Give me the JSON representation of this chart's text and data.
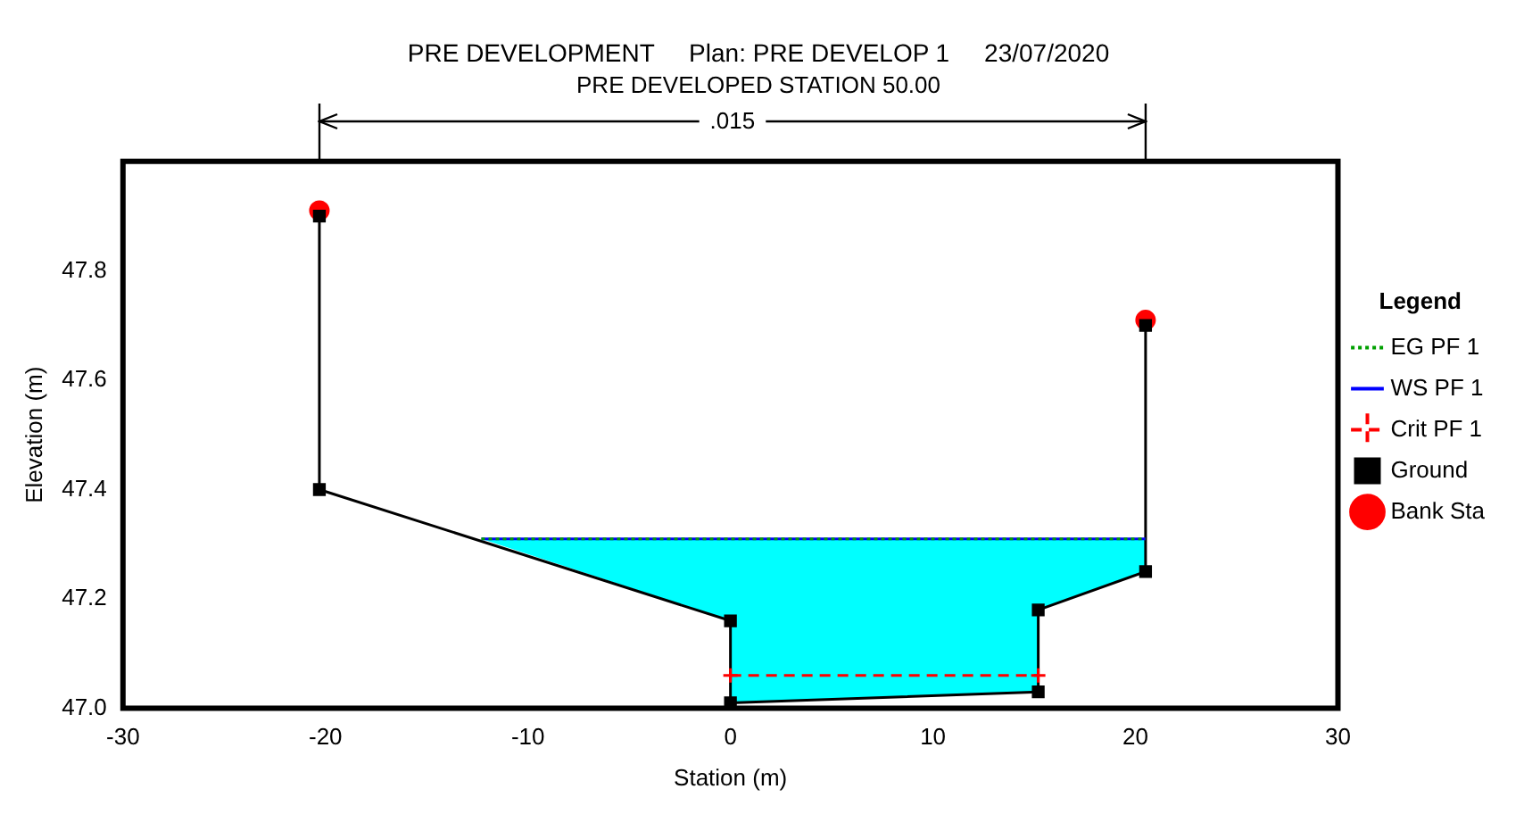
{
  "chart_data": {
    "type": "line",
    "title": "PRE DEVELOPMENT     Plan: PRE DEVELOP 1     23/07/2020",
    "subtitle": "PRE DEVELOPED STATION 50.00",
    "xlabel": "Station (m)",
    "ylabel": "Elevation (m)",
    "legend_title": "Legend",
    "legend": "right",
    "grid": false,
    "xlim": [
      -30,
      30
    ],
    "xticks": [
      -30,
      -20,
      -10,
      0,
      10,
      20,
      30
    ],
    "ylim": [
      47.0,
      48.0
    ],
    "yticks": [
      {
        "value": 47.0,
        "label": "47.0"
      },
      {
        "value": 47.2,
        "label": "47.2"
      },
      {
        "value": 47.4,
        "label": "47.4"
      },
      {
        "value": 47.6,
        "label": "47.6"
      },
      {
        "value": 47.8,
        "label": "47.8"
      }
    ],
    "annotations": [
      ".015"
    ],
    "series": [
      {
        "name": "EG PF 1",
        "type": "line",
        "color": "#00a000",
        "line_style": "dotted",
        "marker": "none",
        "x": [
          -12.3,
          20.5
        ],
        "values": [
          47.31,
          47.31
        ]
      },
      {
        "name": "WS PF 1",
        "type": "line",
        "color": "#0000ff",
        "line_style": "solid",
        "marker": "none",
        "x": [
          -12.3,
          0,
          0,
          15.2,
          15.2,
          20.5
        ],
        "values": [
          47.31,
          47.31,
          47.31,
          47.31,
          47.31,
          47.31
        ],
        "lower": [
          47.31,
          47.16,
          47.01,
          47.03,
          47.18,
          47.25
        ],
        "upper": [
          47.31,
          47.31,
          47.31,
          47.31,
          47.31,
          47.31
        ]
      },
      {
        "name": "Crit PF 1",
        "type": "line",
        "color": "#ff0000",
        "line_style": "dashed",
        "marker": "cross",
        "x": [
          0,
          15.2
        ],
        "values": [
          47.06,
          47.06
        ]
      },
      {
        "name": "Ground",
        "type": "line",
        "color": "#000000",
        "line_style": "solid",
        "marker": "square",
        "x": [
          -20.3,
          -20.3,
          0,
          0,
          15.2,
          15.2,
          20.5,
          20.5
        ],
        "values": [
          47.9,
          47.4,
          47.16,
          47.01,
          47.03,
          47.18,
          47.25,
          47.7
        ]
      },
      {
        "name": "Bank Sta",
        "type": "scatter",
        "color": "#ff0000",
        "marker": "circle",
        "x": [
          -20.3,
          20.5
        ],
        "values": [
          47.91,
          47.71
        ]
      }
    ]
  }
}
